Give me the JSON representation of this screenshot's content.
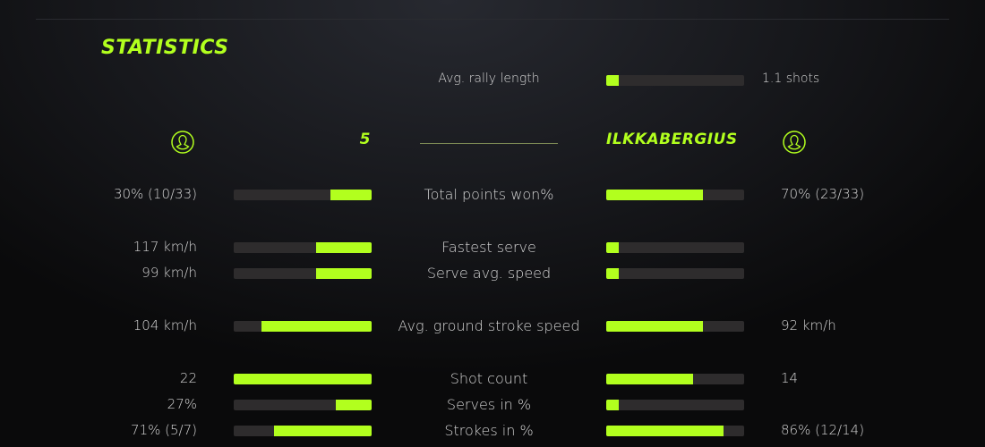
{
  "title": "STATISTICS",
  "accent_color": "#b2ff1e",
  "rally": {
    "label": "Avg. rally length",
    "value": "1.1 shots",
    "fill": 9
  },
  "players": {
    "left": {
      "name": "5",
      "icon": "user-avatar-icon"
    },
    "right": {
      "name": "ILKKABERGIUS",
      "icon": "user-avatar-icon"
    }
  },
  "stats": [
    {
      "label": "Total points won%",
      "left": "30% (10/33)",
      "right": "70% (23/33)",
      "left_fill": 30,
      "right_fill": 70
    },
    {
      "label": "Fastest serve",
      "left": "117 km/h",
      "right": "",
      "left_fill": 40,
      "right_fill": 9
    },
    {
      "label": "Serve avg. speed",
      "left": "99 km/h",
      "right": "",
      "left_fill": 40,
      "right_fill": 9
    },
    {
      "label": "Avg. ground stroke speed",
      "left": "104 km/h",
      "right": "92 km/h",
      "left_fill": 80,
      "right_fill": 70
    },
    {
      "label": "Shot count",
      "left": "22",
      "right": "14",
      "left_fill": 100,
      "right_fill": 63
    },
    {
      "label": "Serves in %",
      "left": "27%",
      "right": "",
      "left_fill": 26,
      "right_fill": 9
    },
    {
      "label": "Strokes in %",
      "left": "71% (5/7)",
      "right": "86% (12/14)",
      "left_fill": 71,
      "right_fill": 85
    }
  ]
}
